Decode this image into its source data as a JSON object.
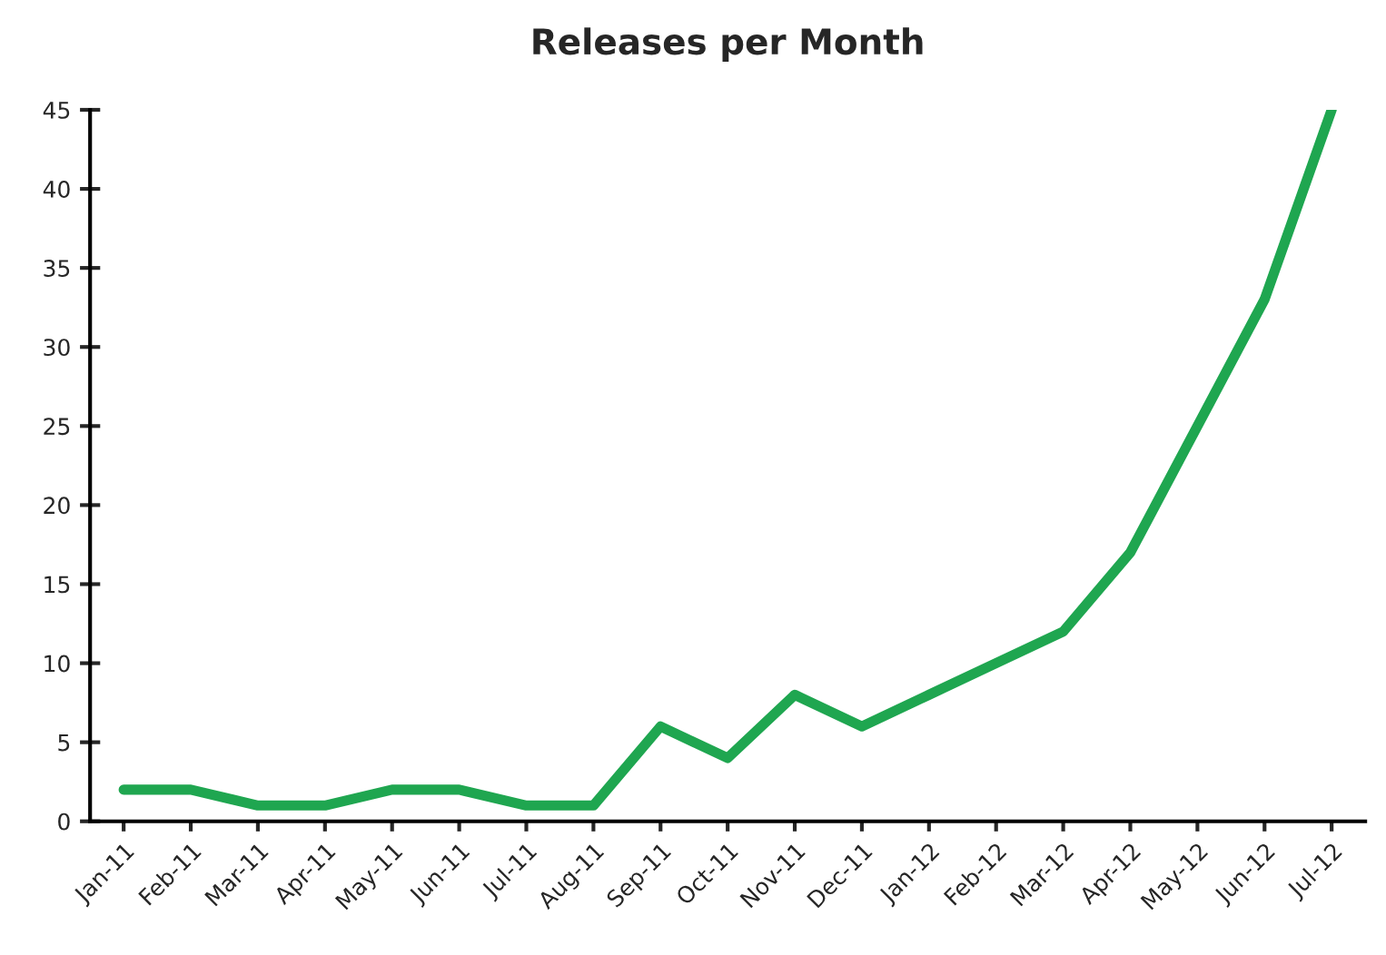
{
  "chart_data": {
    "type": "line",
    "title": "Releases per Month",
    "categories": [
      "Jan-11",
      "Feb-11",
      "Mar-11",
      "Apr-11",
      "May-11",
      "Jun-11",
      "Jul-11",
      "Aug-11",
      "Sep-11",
      "Oct-11",
      "Nov-11",
      "Dec-11",
      "Jan-12",
      "Feb-12",
      "Mar-12",
      "Apr-12",
      "May-12",
      "Jun-12",
      "Jul-12"
    ],
    "series": [
      {
        "color": "#1fa650",
        "values": [
          2,
          2,
          1,
          1,
          2,
          2,
          1,
          1,
          6,
          4,
          8,
          6,
          8,
          10,
          12,
          17,
          25,
          33,
          45
        ]
      }
    ],
    "ylim": [
      0,
      45
    ],
    "yticks": [
      0,
      5,
      10,
      15,
      20,
      25,
      30,
      35,
      40,
      45
    ],
    "grid": false,
    "legend": false
  }
}
